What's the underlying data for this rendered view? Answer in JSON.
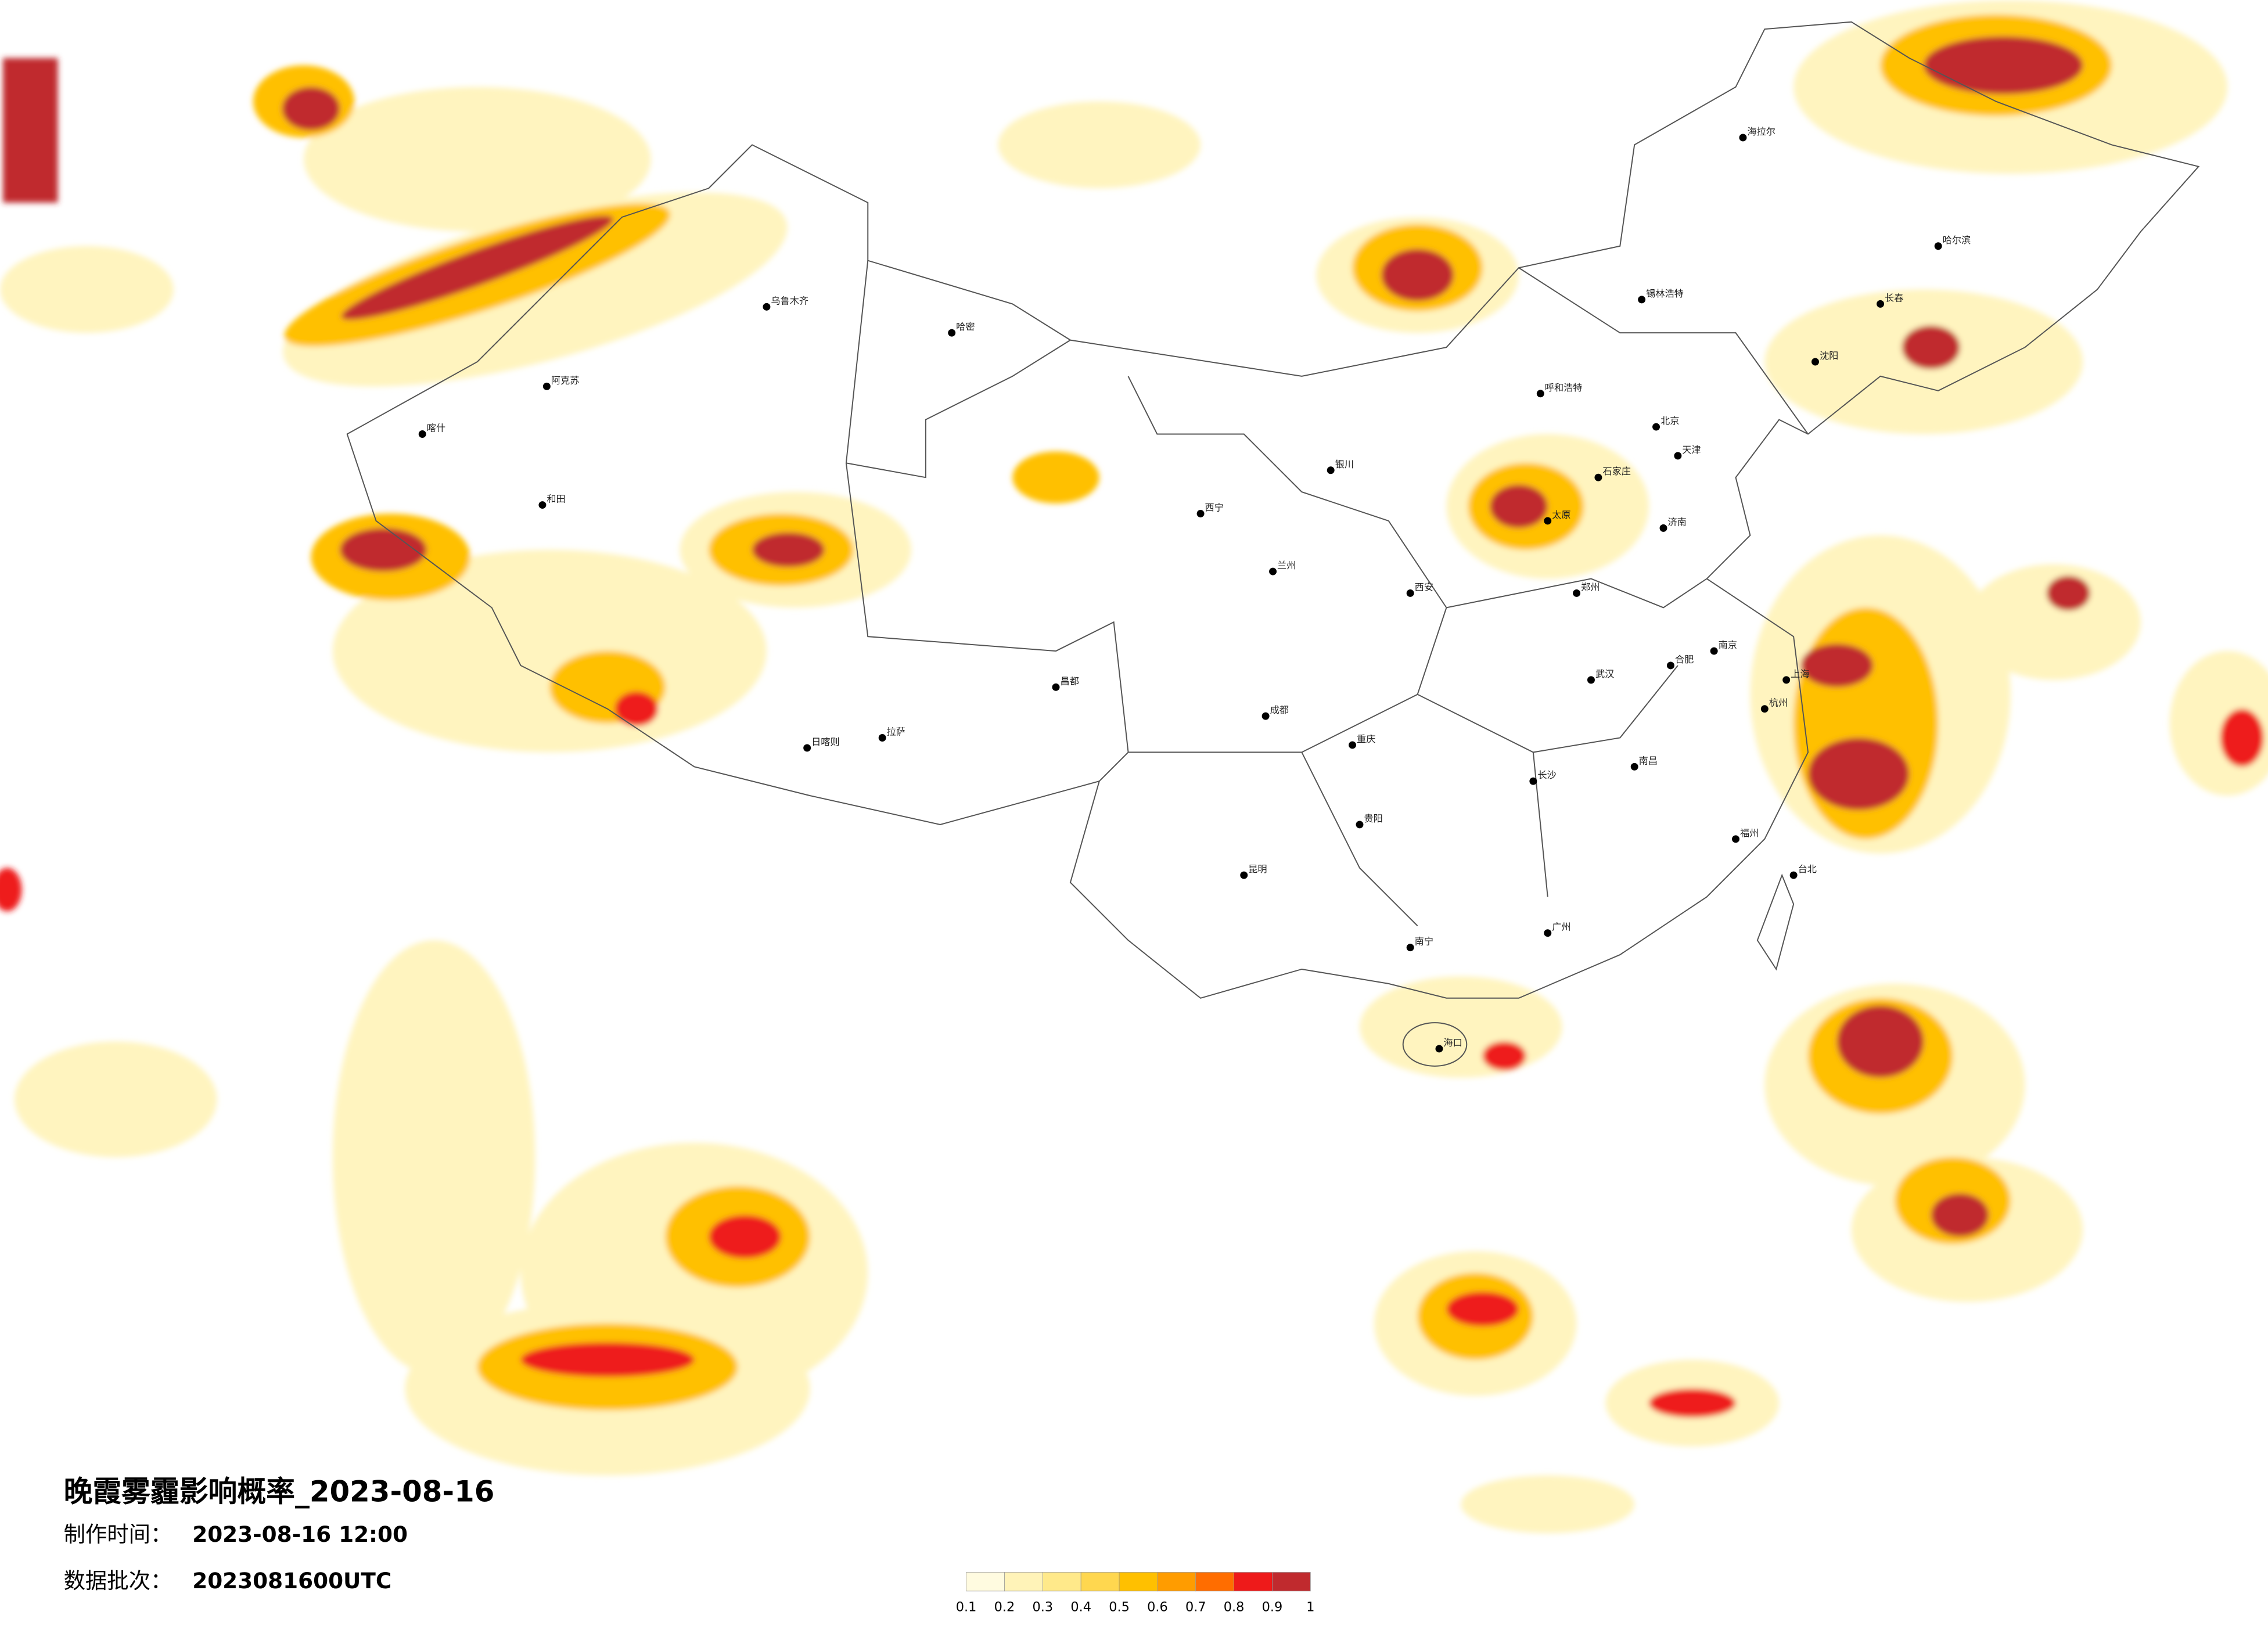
{
  "header": {
    "title": "晚霞雾霾影响概率_2023-08-16",
    "made_label": "制作时间：",
    "made_time": "2023-08-16 12:00",
    "batch_label": "数据批次：",
    "batch": "2023081600UTC"
  },
  "legend": {
    "ticks": [
      0.1,
      0.2,
      0.3,
      0.4,
      0.5,
      0.6,
      0.7,
      0.8,
      0.9,
      1
    ],
    "colors": [
      "#fffbe0",
      "#fff3b8",
      "#ffe98a",
      "#ffd74f",
      "#ffc000",
      "#ff9c00",
      "#ff6d00",
      "#ee1a1a",
      "#c02a2e"
    ]
  },
  "cities": [
    "乌鲁木齐",
    "阿克苏",
    "喀什",
    "和田",
    "哈密",
    "拉萨",
    "日喀则",
    "昌都",
    "西宁",
    "兰州",
    "银川",
    "呼和浩特",
    "北京",
    "天津",
    "石家庄",
    "太原",
    "济南",
    "郑州",
    "西安",
    "成都",
    "重庆",
    "贵阳",
    "昆明",
    "南宁",
    "广州",
    "长沙",
    "武汉",
    "南昌",
    "合肥",
    "南京",
    "上海",
    "杭州",
    "福州",
    "沈阳",
    "长春",
    "哈尔滨",
    "海口",
    "台北",
    "海拉尔",
    "锡林浩特"
  ]
}
